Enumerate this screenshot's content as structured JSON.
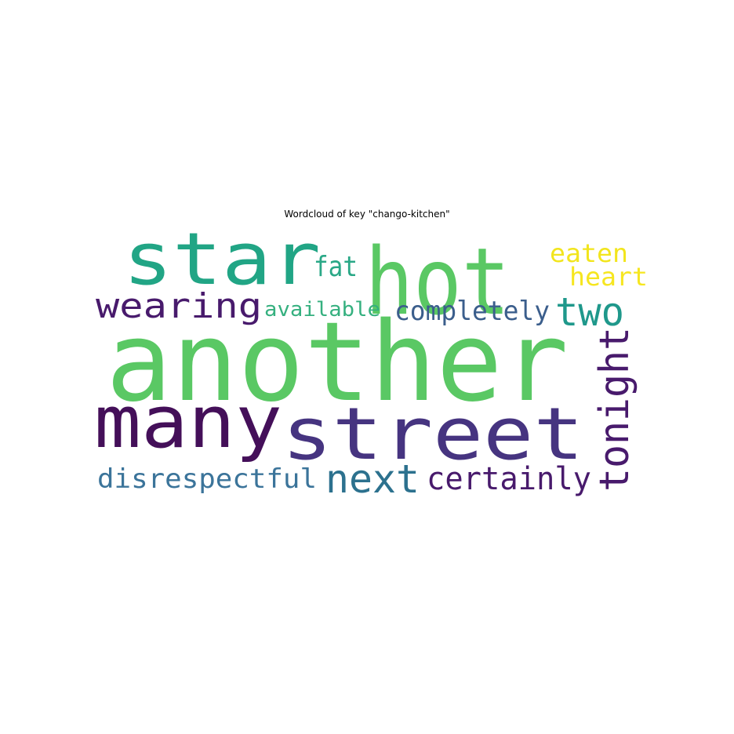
{
  "title": "Wordcloud of key \"chango-kitchen\"",
  "words": [
    {
      "text": "another",
      "color": "#5ac864"
    },
    {
      "text": "street",
      "color": "#463480"
    },
    {
      "text": "hot",
      "color": "#5ac864"
    },
    {
      "text": "star",
      "color": "#21a585"
    },
    {
      "text": "many",
      "color": "#440f59"
    },
    {
      "text": "next",
      "color": "#2c718e"
    },
    {
      "text": "tonight",
      "color": "#481a6c"
    },
    {
      "text": "wearing",
      "color": "#481a6c"
    },
    {
      "text": "two",
      "color": "#1f988b"
    },
    {
      "text": "certainly",
      "color": "#481a6c"
    },
    {
      "text": "disrespectful",
      "color": "#3b749a"
    },
    {
      "text": "completely",
      "color": "#3b5e8c"
    },
    {
      "text": "fat",
      "color": "#2aa887"
    },
    {
      "text": "eaten",
      "color": "#f2e51d"
    },
    {
      "text": "heart",
      "color": "#f6e620"
    },
    {
      "text": "available",
      "color": "#35b07f"
    }
  ]
}
